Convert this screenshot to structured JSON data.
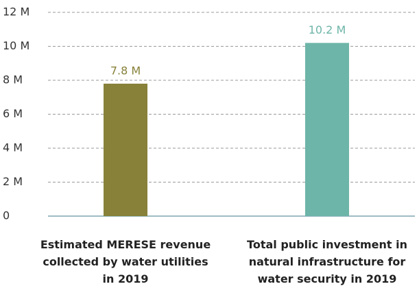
{
  "chart_data": {
    "type": "bar",
    "categories": [
      "Estimated MERESE revenue collected by water utilities in 2019",
      "Total public investment in natural infrastructure for water security in 2019"
    ],
    "values": [
      7.8,
      10.2
    ],
    "value_labels": [
      "7.8 M",
      "10.2 M"
    ],
    "colors": [
      "#878139",
      "#6db5a8"
    ],
    "ylim": [
      0,
      12
    ],
    "yticks": [
      0,
      {
        "value": 2,
        "label": "2 M"
      },
      {
        "value": 4,
        "label": "4 M"
      },
      {
        "value": 6,
        "label": "6 M"
      },
      {
        "value": 8,
        "label": "8 M"
      },
      {
        "value": 10,
        "label": "10 M"
      },
      {
        "value": 12,
        "label": "12 M"
      }
    ],
    "grid": true
  }
}
